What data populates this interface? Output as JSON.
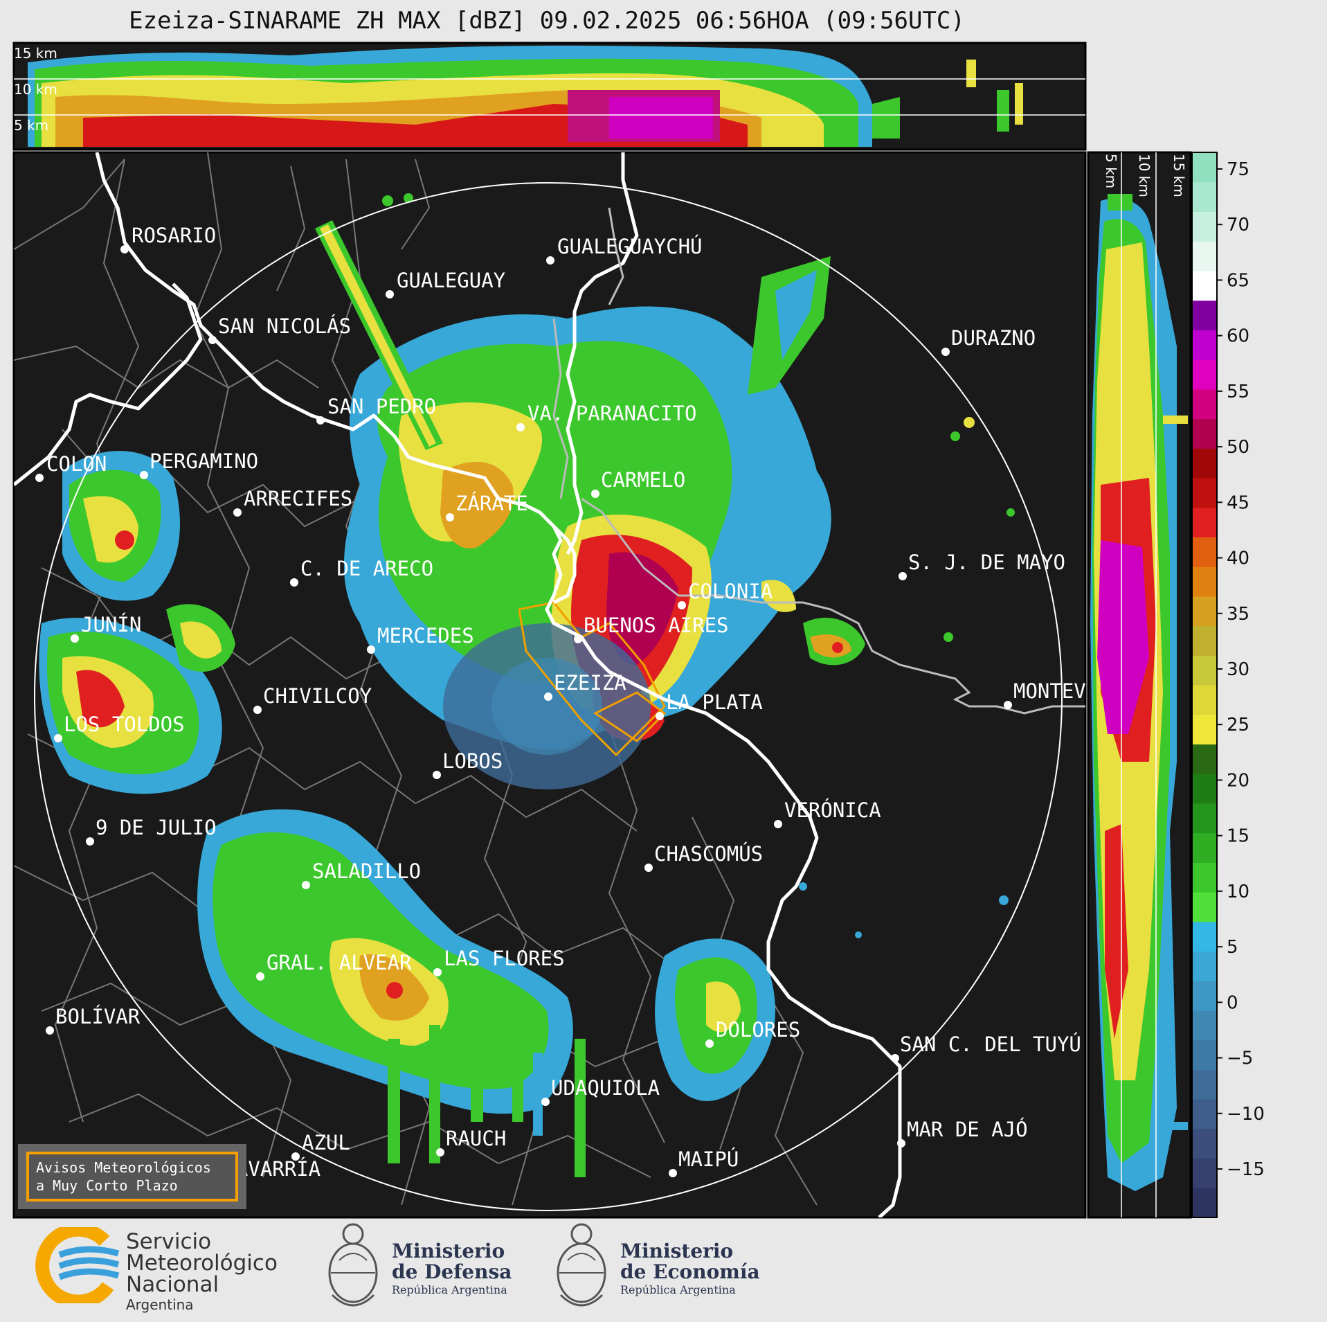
{
  "header": {
    "title": "Ezeiza-SINARAME ZH MAX [dBZ] 09.02.2025 06:56HOA (09:56UTC)"
  },
  "top_panel": {
    "height_labels": [
      "15 km",
      "10 km",
      "5 km"
    ]
  },
  "side_panel": {
    "height_labels": [
      "5 km",
      "10 km",
      "15 km"
    ]
  },
  "colorbar": {
    "unit": "dBZ",
    "ticks": [
      "75",
      "70",
      "65",
      "60",
      "55",
      "50",
      "45",
      "40",
      "35",
      "30",
      "25",
      "20",
      "15",
      "10",
      "5",
      "0",
      "−5",
      "−10",
      "−15"
    ],
    "colors": [
      "#2e3460",
      "#35406e",
      "#3b4e7c",
      "#3e5d8a",
      "#3f6c98",
      "#3f7aa6",
      "#3f88b4",
      "#3f98c4",
      "#3aa8d6",
      "#33b8e6",
      "#4fe03a",
      "#3cc82c",
      "#2fae24",
      "#24961c",
      "#1d7e16",
      "#2a6a14",
      "#f0e838",
      "#e0d838",
      "#c8c838",
      "#c0b030",
      "#d8a020",
      "#e08010",
      "#e06010",
      "#e02020",
      "#c01010",
      "#a00808",
      "#b00050",
      "#d00080",
      "#e000c0",
      "#c000d0",
      "#8000a0",
      "#ffffff",
      "#e8f8f0",
      "#c8f0e0",
      "#a8e8d0",
      "#90e0c0"
    ]
  },
  "map": {
    "range_rings": 1,
    "cities": [
      {
        "name": "ROSARIO"
      },
      {
        "name": "GUALEGUAYCHÚ"
      },
      {
        "name": "GUALEGUAY"
      },
      {
        "name": "SAN NICOLÁS"
      },
      {
        "name": "DURAZNO"
      },
      {
        "name": "SAN PEDRO"
      },
      {
        "name": "VA. PARANACITO"
      },
      {
        "name": "COLON"
      },
      {
        "name": "PERGAMINO"
      },
      {
        "name": "CARMELO"
      },
      {
        "name": "ARRECIFES"
      },
      {
        "name": "ZÁRATE"
      },
      {
        "name": "S. J. DE MAYO"
      },
      {
        "name": "C. DE ARECO"
      },
      {
        "name": "COLONIA"
      },
      {
        "name": "JUNÍN"
      },
      {
        "name": "BUENOS AIRES"
      },
      {
        "name": "MERCEDES"
      },
      {
        "name": "MONTEV"
      },
      {
        "name": "EZEIZA"
      },
      {
        "name": "CHIVILCOY"
      },
      {
        "name": "LA PLATA"
      },
      {
        "name": "LOS TOLDOS"
      },
      {
        "name": "LOBOS"
      },
      {
        "name": "VERÓNICA"
      },
      {
        "name": "9 DE JULIO"
      },
      {
        "name": "CHASCOMÚS"
      },
      {
        "name": "SALADILLO"
      },
      {
        "name": "GRAL. ALVEAR"
      },
      {
        "name": "LAS FLORES"
      },
      {
        "name": "BOLÍVAR"
      },
      {
        "name": "DOLORES"
      },
      {
        "name": "SAN C. DEL TUYÚ"
      },
      {
        "name": "UDAQUIOLA"
      },
      {
        "name": "MAR DE AJÓ"
      },
      {
        "name": "RAUCH"
      },
      {
        "name": "AZUL"
      },
      {
        "name": "OLAVARRÍA"
      },
      {
        "name": "MAIPÚ"
      }
    ]
  },
  "notice": {
    "line1": "Avisos Meteorológicos",
    "line2": "a Muy Corto Plazo"
  },
  "footer": {
    "smn": {
      "line1": "Servicio",
      "line2": "Meteorológico",
      "line3": "Nacional",
      "line4": "Argentina"
    },
    "defensa": {
      "title1": "Ministerio",
      "title2": "de Defensa",
      "sub": "República Argentina"
    },
    "economia": {
      "title1": "Ministerio",
      "title2": "de Economía",
      "sub": "República Argentina"
    },
    "brand_colors": {
      "smn_orange": "#f5a800",
      "smn_blue": "#3aa0dc",
      "navy": "#2b3550"
    }
  }
}
